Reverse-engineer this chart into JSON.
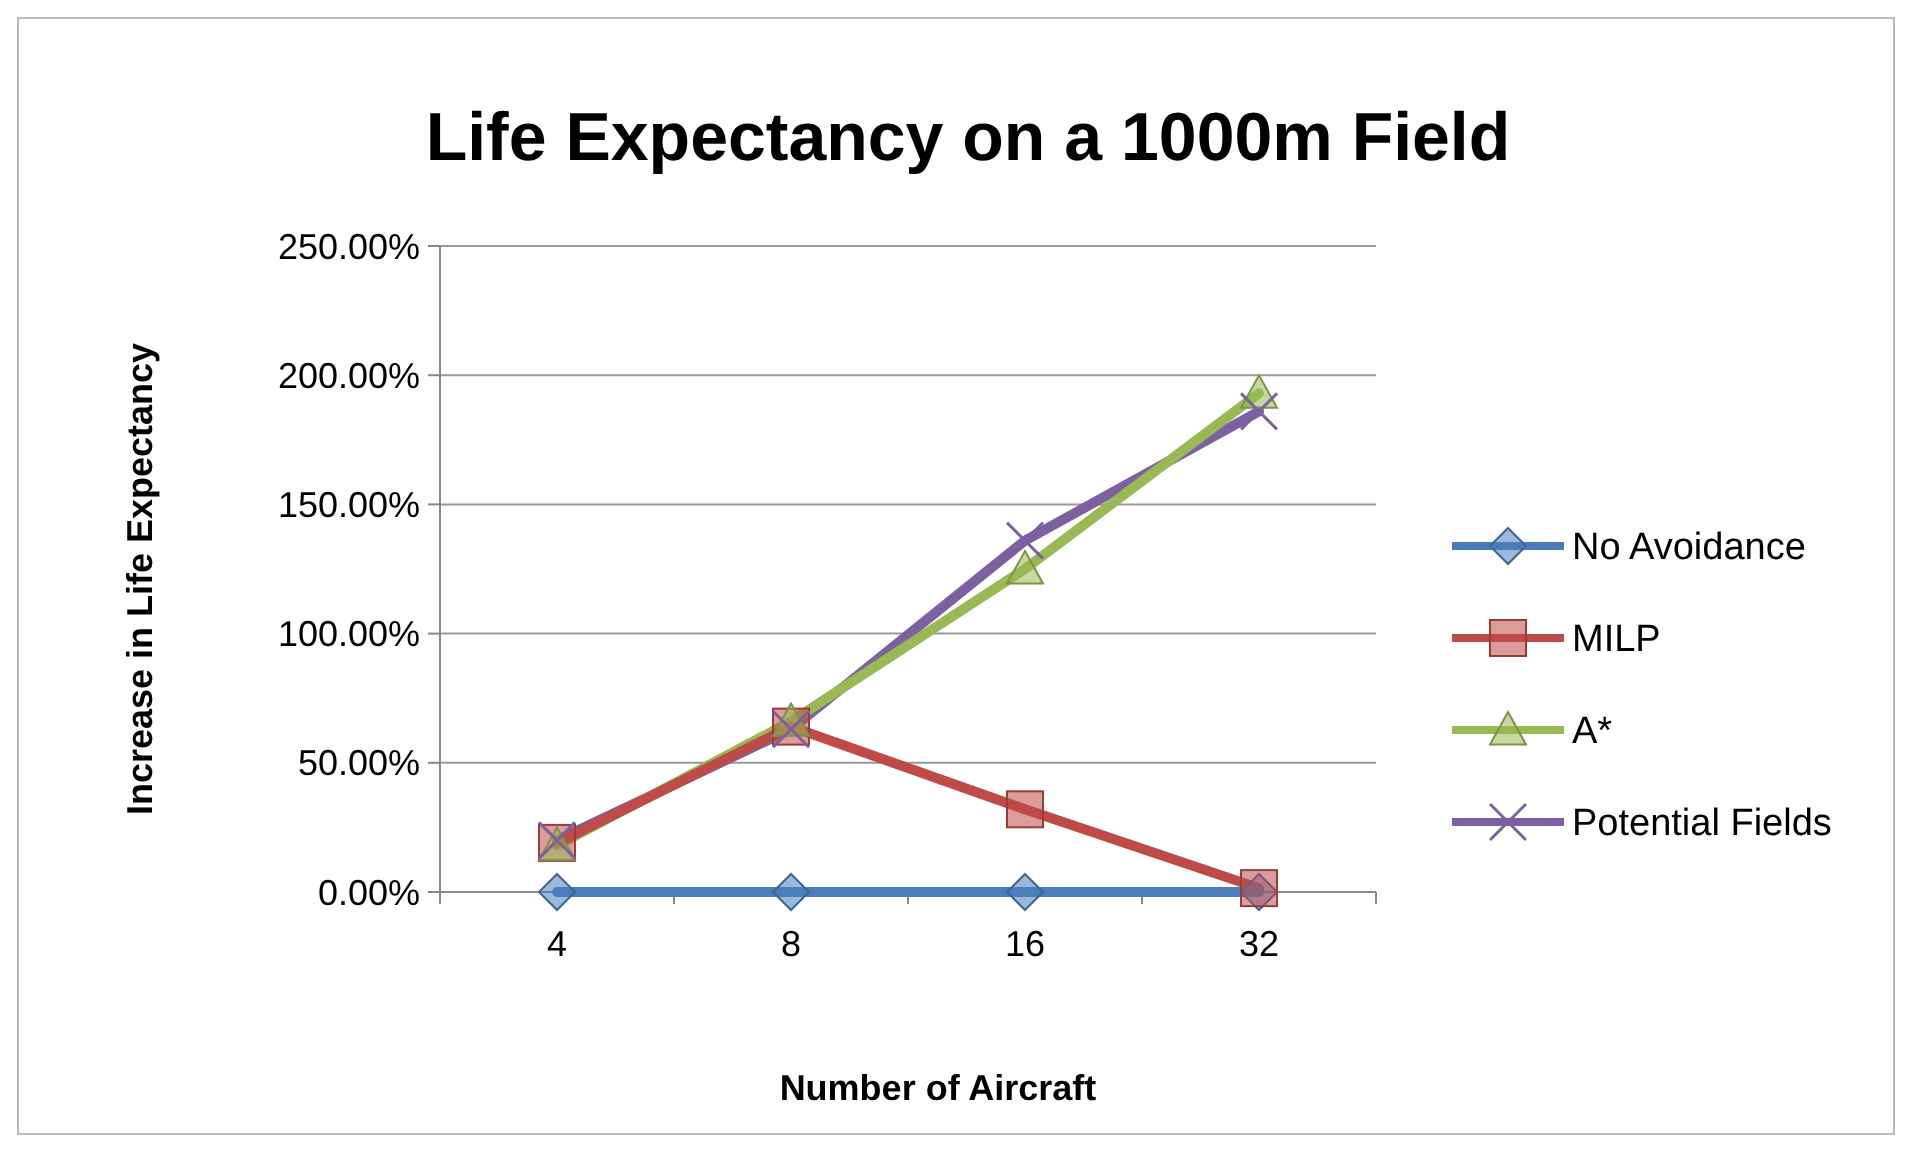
{
  "chart_data": {
    "type": "line",
    "title": "Life Expectancy on a 1000m Field",
    "xlabel": "Number of Aircraft",
    "ylabel": "Increase in Life Expectancy",
    "categories": [
      "4",
      "8",
      "16",
      "32"
    ],
    "series": [
      {
        "name": "No Avoidance",
        "color": "#4a7ebb",
        "marker": "diamond",
        "values": [
          0,
          0,
          0,
          0
        ]
      },
      {
        "name": "MILP",
        "color": "#be4b48",
        "marker": "square",
        "values": [
          19,
          64,
          32,
          1.5
        ]
      },
      {
        "name": "A*",
        "color": "#98b954",
        "marker": "triangle",
        "values": [
          18,
          66,
          125,
          193
        ]
      },
      {
        "name": "Potential Fields",
        "color": "#7d60a0",
        "marker": "cross",
        "values": [
          20,
          63,
          136,
          186
        ]
      }
    ],
    "ylim": [
      0,
      250
    ],
    "yticks": [
      {
        "value": 0,
        "label": "0.00%"
      },
      {
        "value": 50,
        "label": "50.00%"
      },
      {
        "value": 100,
        "label": "100.00%"
      },
      {
        "value": 150,
        "label": "150.00%"
      },
      {
        "value": 200,
        "label": "200.00%"
      },
      {
        "value": 250,
        "label": "250.00%"
      }
    ],
    "grid": "y",
    "legend": "right"
  }
}
